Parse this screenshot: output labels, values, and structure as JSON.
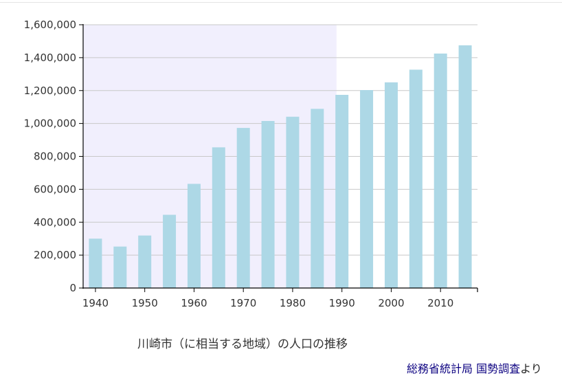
{
  "chart_data": {
    "type": "bar",
    "title": "",
    "xlabel": "",
    "ylabel": "",
    "categories": [
      "1940",
      "1945",
      "1950",
      "1955",
      "1960",
      "1965",
      "1970",
      "1975",
      "1980",
      "1985",
      "1990",
      "1995",
      "2000",
      "2005",
      "2010",
      "2015"
    ],
    "values": [
      300000,
      252000,
      319000,
      445000,
      633000,
      855000,
      973000,
      1015000,
      1041000,
      1089000,
      1174000,
      1203000,
      1250000,
      1327000,
      1425000,
      1475000
    ],
    "x_tick_labels": [
      "1940",
      "1950",
      "1960",
      "1970",
      "1980",
      "1990",
      "2000",
      "2010"
    ],
    "y_tick_labels": [
      "0",
      "200,000",
      "400,000",
      "600,000",
      "800,000",
      "1,000,000",
      "1,200,000",
      "1,400,000",
      "1,600,000"
    ],
    "y_ticks": [
      0,
      200000,
      400000,
      600000,
      800000,
      1000000,
      1200000,
      1400000,
      1600000
    ],
    "ylim": [
      0,
      1600000
    ],
    "highlight_range": [
      "1940",
      "1989"
    ],
    "grid": true,
    "bar_color": "#add8e6",
    "highlight_color": "#f1effd",
    "grid_color": "#c8c8c8"
  },
  "caption": "川崎市（に相当する地域）の人口の推移",
  "source": {
    "link1": "総務省統計局",
    "link2": "国勢調査",
    "suffix": "より"
  }
}
